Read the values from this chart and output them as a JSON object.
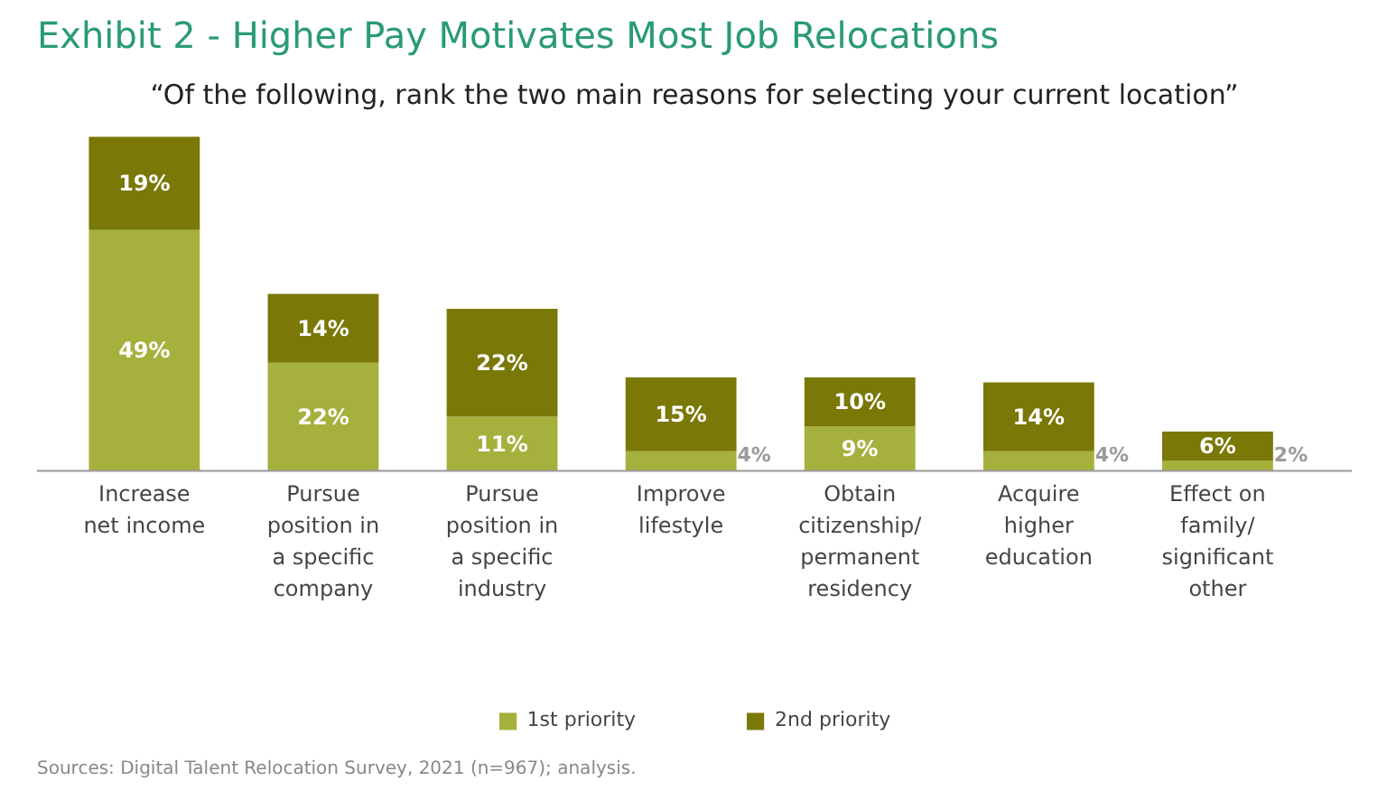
{
  "chart_data": {
    "type": "bar",
    "stacked": true,
    "title": "Exhibit 2 - Higher Pay Motivates Most Job Relocations",
    "subtitle": "“Of the following, rank the two main reasons for selecting your current location”",
    "categories": [
      "Increase net income",
      "Pursue position in a specific company",
      "Pursue position in a specific industry",
      "Improve lifestyle",
      "Obtain citizenship/ permanent residency",
      "Acquire higher education",
      "Effect on family/ significant other"
    ],
    "series": [
      {
        "name": "1st priority",
        "color": "#a6b03c",
        "values": [
          49,
          22,
          11,
          4,
          9,
          4,
          2
        ],
        "value_labels": [
          "49%",
          "22%",
          "11%",
          "4%",
          "9%",
          "4%",
          "2%"
        ]
      },
      {
        "name": "2nd priority",
        "color": "#7a7806",
        "values": [
          19,
          14,
          22,
          15,
          10,
          14,
          6
        ],
        "value_labels": [
          "19%",
          "14%",
          "22%",
          "15%",
          "10%",
          "14%",
          "6%"
        ]
      }
    ],
    "legend": "bottom",
    "annotations": [
      "Sources: Digital Talent Relocation Survey, 2021 (n=967); analysis."
    ]
  }
}
